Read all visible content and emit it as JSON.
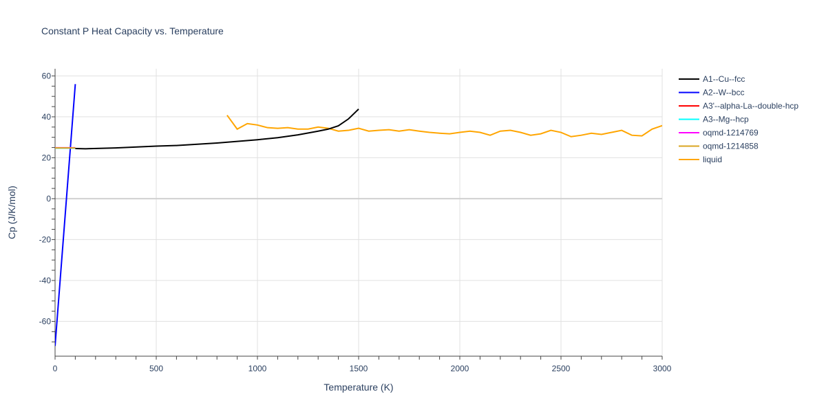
{
  "chart_data": {
    "type": "line",
    "title": "Constant P Heat Capacity vs. Temperature",
    "xlabel": "Temperature (K)",
    "ylabel": "Cp (J/K/mol)",
    "xlim": [
      0,
      3000
    ],
    "ylim": [
      -77,
      63.5
    ],
    "xticks": [
      0,
      500,
      1000,
      1500,
      2000,
      2500,
      3000
    ],
    "yticks": [
      -60,
      -40,
      -20,
      0,
      20,
      40,
      60
    ],
    "grid": true,
    "legend_position": "right",
    "series": [
      {
        "name": "A1--Cu--fcc",
        "color": "#000000",
        "x": [
          100,
          150,
          300,
          500,
          600,
          800,
          1000,
          1100,
          1200,
          1300,
          1350,
          1400,
          1450,
          1500
        ],
        "y": [
          24.5,
          24.4,
          24.8,
          25.7,
          26,
          27.2,
          28.8,
          29.8,
          31.2,
          33,
          34,
          35.6,
          39,
          43.8
        ]
      },
      {
        "name": "A2--W--bcc",
        "color": "#0000ff",
        "x": [
          0,
          100
        ],
        "y": [
          -72,
          56
        ]
      },
      {
        "name": "A3'--alpha-La--double-hcp",
        "color": "#ff0000",
        "x": [
          0,
          100
        ],
        "y": [
          24.8,
          24.8
        ]
      },
      {
        "name": "A3--Mg--hcp",
        "color": "#00ffff",
        "x": [
          0,
          100
        ],
        "y": [
          24.7,
          24.7
        ]
      },
      {
        "name": "oqmd-1214769",
        "color": "#ff00ff",
        "x": [
          0,
          100
        ],
        "y": [
          24.9,
          24.9
        ]
      },
      {
        "name": "oqmd-1214858",
        "color": "#daa520",
        "x": [
          0,
          100
        ],
        "y": [
          24.8,
          24.8
        ]
      },
      {
        "name": "liquid",
        "color": "#ffa500",
        "x": [
          850,
          900,
          950,
          1000,
          1050,
          1100,
          1150,
          1200,
          1250,
          1300,
          1350,
          1400,
          1450,
          1500,
          1550,
          1600,
          1650,
          1700,
          1750,
          1800,
          1850,
          1900,
          1950,
          2000,
          2050,
          2100,
          2150,
          2200,
          2250,
          2300,
          2350,
          2400,
          2450,
          2500,
          2550,
          2600,
          2650,
          2700,
          2750,
          2800,
          2850,
          2900,
          2950,
          3000
        ],
        "y": [
          40.8,
          34,
          36.7,
          36,
          34.7,
          34.4,
          34.7,
          34,
          34,
          35,
          34.4,
          33,
          33.4,
          34.4,
          33,
          33.4,
          33.7,
          33,
          33.7,
          33,
          32.4,
          32,
          31.7,
          32.4,
          33,
          32.4,
          31,
          33,
          33.4,
          32.4,
          31,
          31.7,
          33.4,
          32.4,
          30.3,
          31,
          32,
          31.4,
          32.4,
          33.4,
          31,
          30.7,
          34,
          35.7
        ]
      }
    ]
  }
}
